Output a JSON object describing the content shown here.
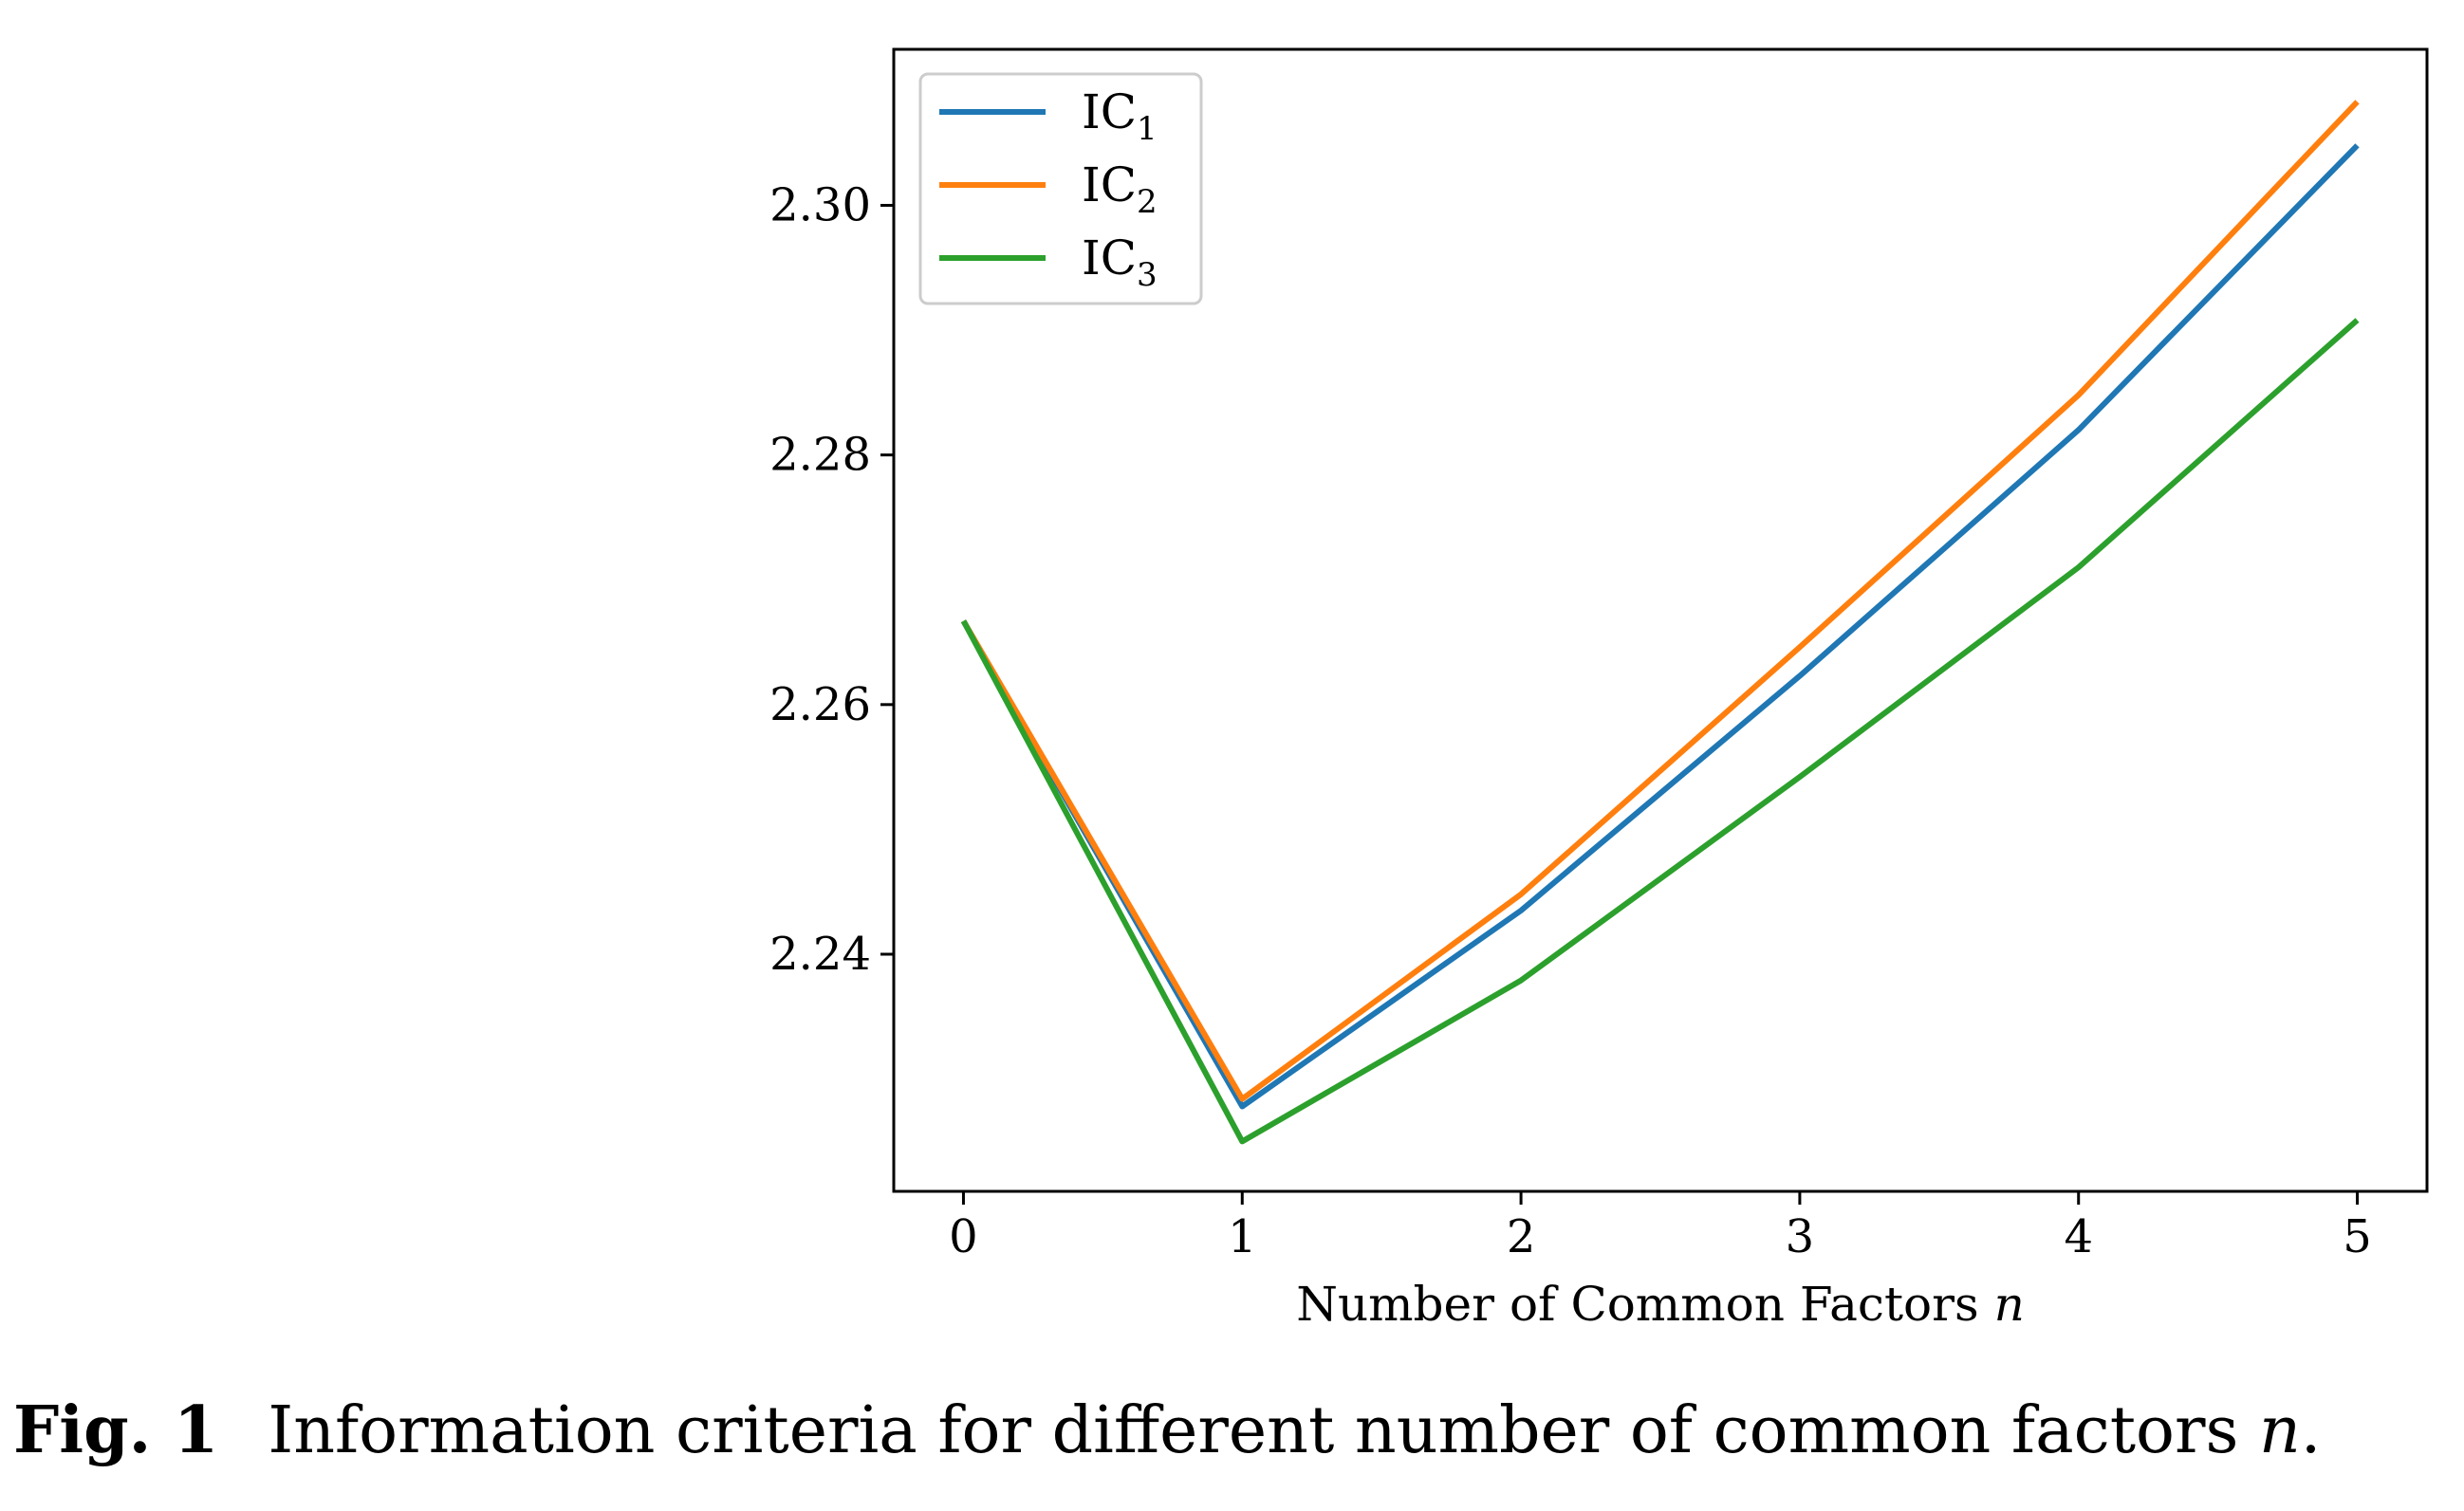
{
  "chart_data": {
    "type": "line",
    "title": "",
    "xlabel": {
      "text": "Number of Common Factors ",
      "var": "n"
    },
    "ylabel": "",
    "x": [
      0,
      1,
      2,
      3,
      4,
      5
    ],
    "xticks": [
      "0",
      "1",
      "2",
      "3",
      "4",
      "5"
    ],
    "yticks": [
      "2.24",
      "2.26",
      "2.28",
      "2.30"
    ],
    "ytick_values": [
      2.24,
      2.26,
      2.28,
      2.3
    ],
    "xlim": [
      -0.25,
      5.25
    ],
    "ylim": [
      2.221,
      2.3125
    ],
    "legend_position": "top-left",
    "series": [
      {
        "name": "IC",
        "sub": "1",
        "color": "#1f77b4",
        "values": [
          2.2667,
          2.2278,
          2.2435,
          2.2623,
          2.282,
          2.3048
        ]
      },
      {
        "name": "IC",
        "sub": "2",
        "color": "#ff7f0e",
        "values": [
          2.2667,
          2.2284,
          2.2448,
          2.2646,
          2.2848,
          2.3083
        ]
      },
      {
        "name": "IC",
        "sub": "3",
        "color": "#2ca02c",
        "values": [
          2.2667,
          2.225,
          2.2379,
          2.2542,
          2.271,
          2.2908
        ]
      }
    ]
  },
  "caption": {
    "label": "Fig. 1",
    "text": "Information criteria for different number of common factors ",
    "var": "n",
    "end": "."
  }
}
